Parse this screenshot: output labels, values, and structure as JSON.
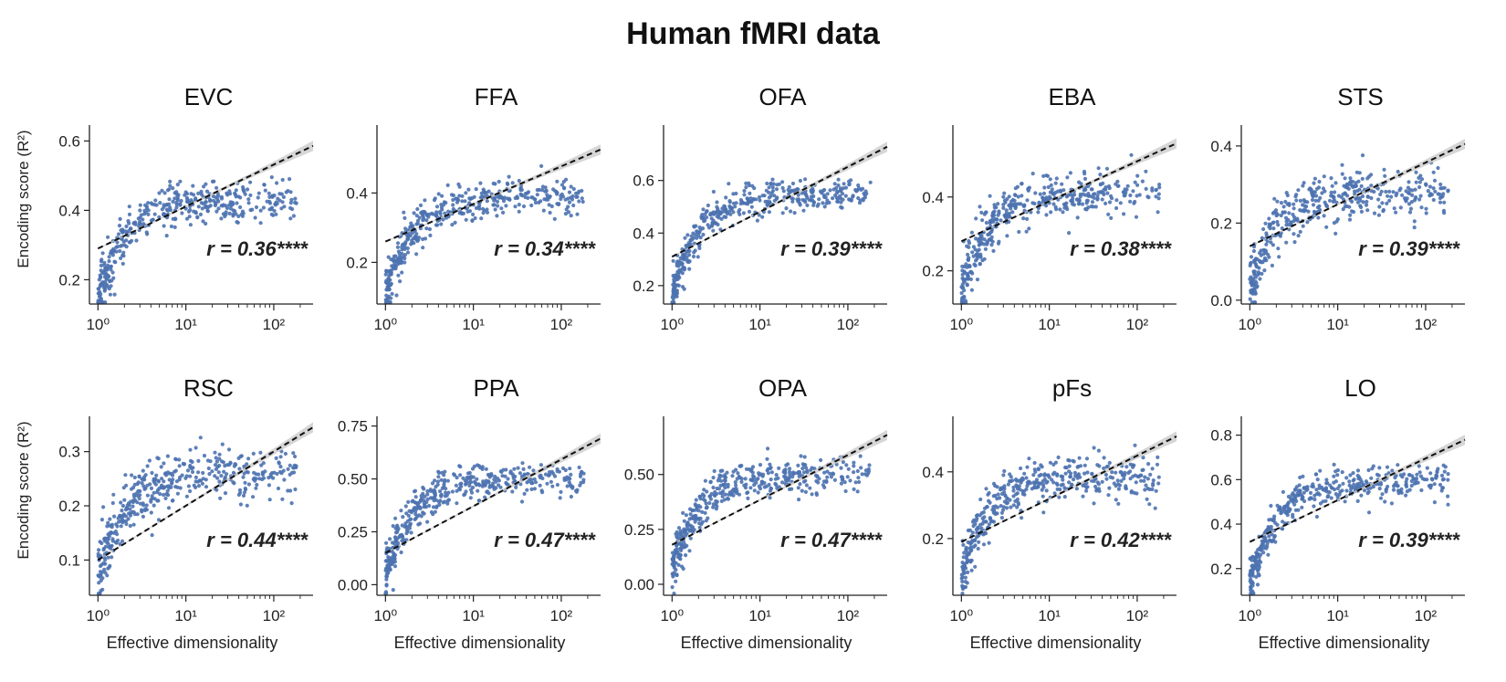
{
  "figure_title": "Human fMRI data",
  "x_axis_label": "Effective dimensionality",
  "y_axis_label": "Encoding score (R²)",
  "point_color": "#4c72b0",
  "fit_line_color": "#111111",
  "ci_band_color": "#c8c8c8",
  "chart_data": [
    {
      "type": "scatter",
      "title": "EVC",
      "r_label": "r = 0.36****",
      "xscale": "log",
      "xlim": [
        0.8,
        280
      ],
      "ylim": [
        0.13,
        0.63
      ],
      "yticks": [
        0.2,
        0.4,
        0.6
      ],
      "ytick_labels": [
        "0.2",
        "0.4",
        "0.6"
      ],
      "fit": {
        "y_at_1": 0.29,
        "y_at_250": 0.58
      },
      "cloud": {
        "low_start": 0.14,
        "plateau": 0.43,
        "spread": 0.045
      },
      "xticks": [
        1,
        10,
        100
      ],
      "xtick_labels": [
        "10⁰",
        "10¹",
        "10²"
      ]
    },
    {
      "type": "scatter",
      "title": "FFA",
      "r_label": "r = 0.34****",
      "xscale": "log",
      "xlim": [
        0.8,
        280
      ],
      "ylim": [
        0.08,
        0.58
      ],
      "yticks": [
        0.2,
        0.4
      ],
      "ytick_labels": [
        "0.2",
        "0.4"
      ],
      "fit": {
        "y_at_1": 0.26,
        "y_at_250": 0.52
      },
      "cloud": {
        "low_start": 0.1,
        "plateau": 0.39,
        "spread": 0.04
      },
      "xticks": [
        1,
        10,
        100
      ],
      "xtick_labels": [
        "10⁰",
        "10¹",
        "10²"
      ]
    },
    {
      "type": "scatter",
      "title": "OFA",
      "r_label": "r = 0.39****",
      "xscale": "log",
      "xlim": [
        0.8,
        280
      ],
      "ylim": [
        0.13,
        0.79
      ],
      "yticks": [
        0.2,
        0.4,
        0.6
      ],
      "ytick_labels": [
        "0.2",
        "0.4",
        "0.6"
      ],
      "fit": {
        "y_at_1": 0.31,
        "y_at_250": 0.72
      },
      "cloud": {
        "low_start": 0.15,
        "plateau": 0.55,
        "spread": 0.045
      },
      "xticks": [
        1,
        10,
        100
      ],
      "xtick_labels": [
        "10⁰",
        "10¹",
        "10²"
      ]
    },
    {
      "type": "scatter",
      "title": "EBA",
      "r_label": "r = 0.38****",
      "xscale": "log",
      "xlim": [
        0.8,
        280
      ],
      "ylim": [
        0.11,
        0.58
      ],
      "yticks": [
        0.2,
        0.4
      ],
      "ytick_labels": [
        "0.2",
        "0.4"
      ],
      "fit": {
        "y_at_1": 0.28,
        "y_at_250": 0.54
      },
      "cloud": {
        "low_start": 0.14,
        "plateau": 0.41,
        "spread": 0.04
      },
      "xticks": [
        1,
        10,
        100
      ],
      "xtick_labels": [
        "10⁰",
        "10¹",
        "10²"
      ]
    },
    {
      "type": "scatter",
      "title": "STS",
      "r_label": "r = 0.39****",
      "xscale": "log",
      "xlim": [
        0.8,
        280
      ],
      "ylim": [
        -0.01,
        0.44
      ],
      "yticks": [
        0.0,
        0.2,
        0.4
      ],
      "ytick_labels": [
        "0.0",
        "0.2",
        "0.4"
      ],
      "fit": {
        "y_at_1": 0.14,
        "y_at_250": 0.4
      },
      "cloud": {
        "low_start": 0.02,
        "plateau": 0.28,
        "spread": 0.045
      },
      "xticks": [
        1,
        10,
        100
      ],
      "xtick_labels": [
        "10⁰",
        "10¹",
        "10²"
      ]
    },
    {
      "type": "scatter",
      "title": "RSC",
      "r_label": "r = 0.44****",
      "xscale": "log",
      "xlim": [
        0.8,
        280
      ],
      "ylim": [
        0.035,
        0.355
      ],
      "yticks": [
        0.1,
        0.2,
        0.3
      ],
      "ytick_labels": [
        "0.1",
        "0.2",
        "0.3"
      ],
      "fit": {
        "y_at_1": 0.1,
        "y_at_250": 0.34
      },
      "cloud": {
        "low_start": 0.07,
        "plateau": 0.26,
        "spread": 0.035
      },
      "xticks": [
        1,
        10,
        100
      ],
      "xtick_labels": [
        "10⁰",
        "10¹",
        "10²"
      ]
    },
    {
      "type": "scatter",
      "title": "PPA",
      "r_label": "r = 0.47****",
      "xscale": "log",
      "xlim": [
        0.8,
        280
      ],
      "ylim": [
        -0.05,
        0.77
      ],
      "yticks": [
        0.0,
        0.25,
        0.5,
        0.75
      ],
      "ytick_labels": [
        "0.00",
        "0.25",
        "0.50",
        "0.75"
      ],
      "fit": {
        "y_at_1": 0.15,
        "y_at_250": 0.68
      },
      "cloud": {
        "low_start": 0.05,
        "plateau": 0.5,
        "spread": 0.06
      },
      "xticks": [
        1,
        10,
        100
      ],
      "xtick_labels": [
        "10⁰",
        "10¹",
        "10²"
      ]
    },
    {
      "type": "scatter",
      "title": "OPA",
      "r_label": "r = 0.47****",
      "xscale": "log",
      "xlim": [
        0.8,
        280
      ],
      "ylim": [
        -0.05,
        0.74
      ],
      "yticks": [
        0.0,
        0.25,
        0.5
      ],
      "ytick_labels": [
        "0.00",
        "0.25",
        "0.50"
      ],
      "fit": {
        "y_at_1": 0.18,
        "y_at_250": 0.67
      },
      "cloud": {
        "low_start": 0.06,
        "plateau": 0.5,
        "spread": 0.06
      },
      "xticks": [
        1,
        10,
        100
      ],
      "xtick_labels": [
        "10⁰",
        "10¹",
        "10²"
      ]
    },
    {
      "type": "scatter",
      "title": "pFs",
      "r_label": "r = 0.42****",
      "xscale": "log",
      "xlim": [
        0.8,
        280
      ],
      "ylim": [
        0.03,
        0.55
      ],
      "yticks": [
        0.2,
        0.4
      ],
      "ytick_labels": [
        "0.2",
        "0.4"
      ],
      "fit": {
        "y_at_1": 0.19,
        "y_at_250": 0.5
      },
      "cloud": {
        "low_start": 0.08,
        "plateau": 0.39,
        "spread": 0.045
      },
      "xticks": [
        1,
        10,
        100
      ],
      "xtick_labels": [
        "10⁰",
        "10¹",
        "10²"
      ]
    },
    {
      "type": "scatter",
      "title": "LO",
      "r_label": "r = 0.39****",
      "xscale": "log",
      "xlim": [
        0.8,
        280
      ],
      "ylim": [
        0.08,
        0.86
      ],
      "yticks": [
        0.2,
        0.4,
        0.6,
        0.8
      ],
      "ytick_labels": [
        "0.2",
        "0.4",
        "0.6",
        "0.8"
      ],
      "fit": {
        "y_at_1": 0.32,
        "y_at_250": 0.77
      },
      "cloud": {
        "low_start": 0.13,
        "plateau": 0.59,
        "spread": 0.05
      },
      "xticks": [
        1,
        10,
        100
      ],
      "xtick_labels": [
        "10⁰",
        "10¹",
        "10²"
      ]
    }
  ]
}
